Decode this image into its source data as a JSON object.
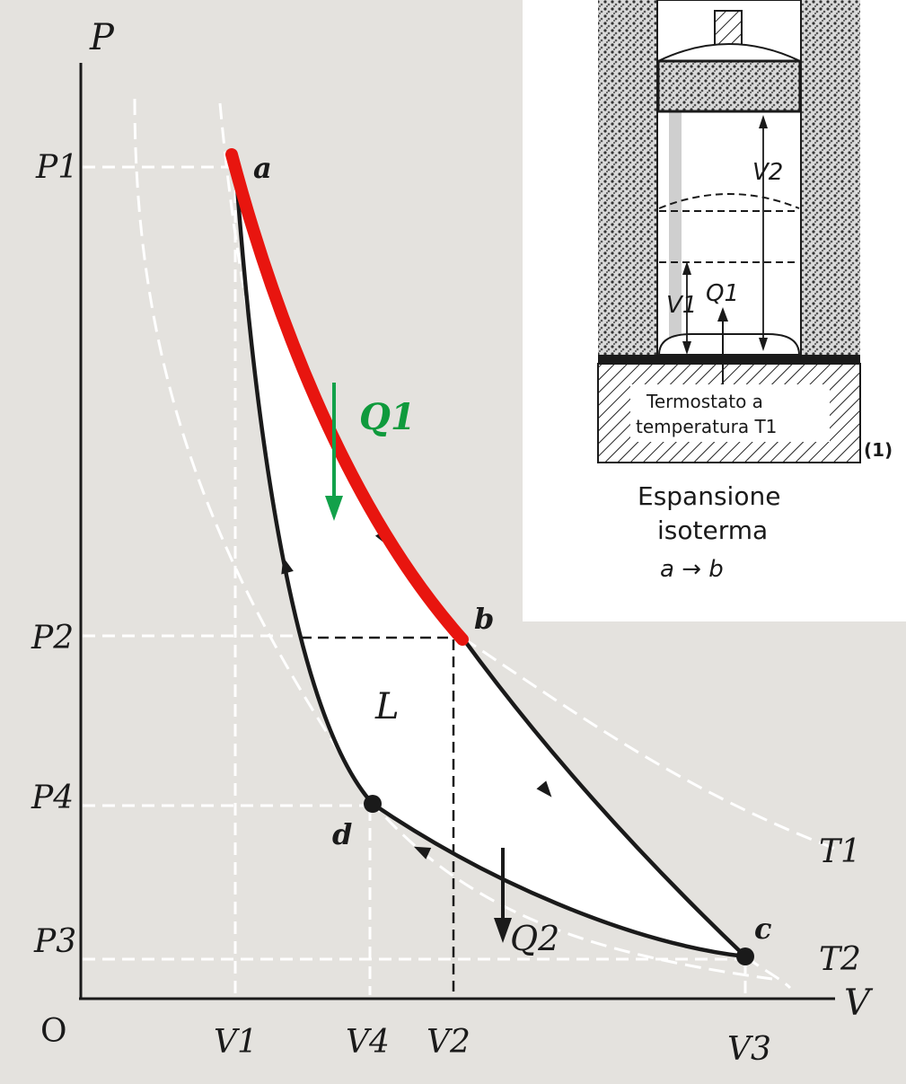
{
  "diagram": {
    "axes": {
      "y_label": "P",
      "x_label": "V",
      "origin": "O"
    },
    "pressure_labels": {
      "p1": "P1",
      "p2": "P2",
      "p4": "P4",
      "p3": "P3"
    },
    "volume_labels": {
      "v1": "V1",
      "v4": "V4",
      "v2": "V2",
      "v3": "V3"
    },
    "points": {
      "a": "a",
      "b": "b",
      "c": "c",
      "d": "d"
    },
    "isotherms": {
      "t1": "T1",
      "t2": "T2"
    },
    "work_label": "L",
    "heat_in": "Q1",
    "heat_out": "Q2",
    "colors": {
      "highlight": "#e8150f",
      "heat_arrow": "#12a14a",
      "background": "#e4e2de"
    }
  },
  "inset": {
    "volume_top": "V2",
    "volume_bottom": "V1",
    "heat": "Q1",
    "thermostat_line1": "Termostato a",
    "thermostat_line2": "temperatura T1",
    "figure_number": "(1)",
    "caption_line1": "Espansione",
    "caption_line2": "isoterma",
    "caption_process": "a → b"
  }
}
